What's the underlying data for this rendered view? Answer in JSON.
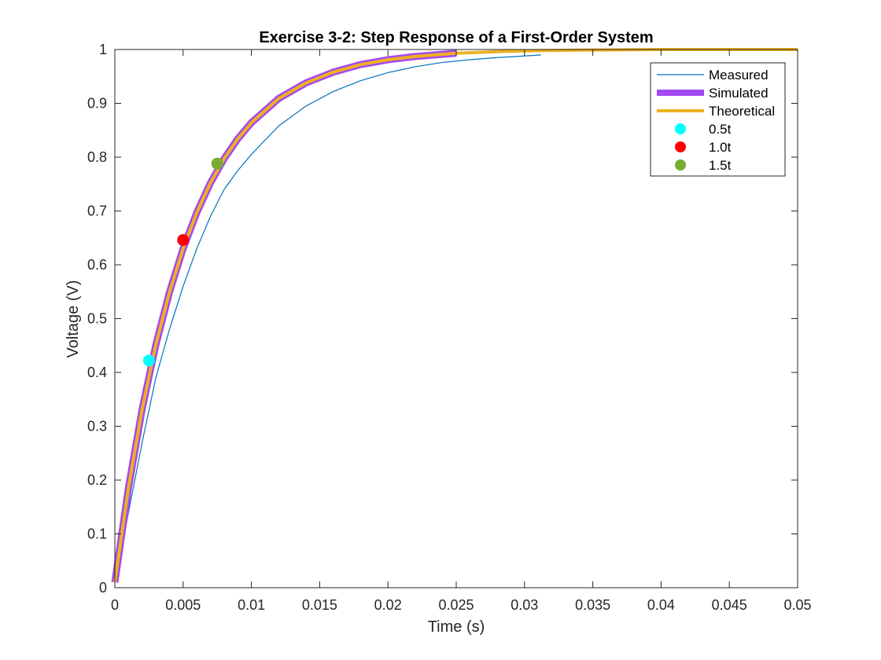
{
  "chart_data": {
    "type": "line",
    "title": "Exercise 3-2: Step Response of a First-Order System",
    "xlabel": "Time (s)",
    "ylabel": "Voltage (V)",
    "xlim": [
      0,
      0.05
    ],
    "ylim": [
      0,
      1
    ],
    "xticks": [
      0,
      0.005,
      0.01,
      0.015,
      0.02,
      0.025,
      0.03,
      0.035,
      0.04,
      0.045,
      0.05
    ],
    "xtick_labels": [
      "0",
      "0.005",
      "0.01",
      "0.015",
      "0.02",
      "0.025",
      "0.03",
      "0.035",
      "0.04",
      "0.045",
      "0.05"
    ],
    "yticks": [
      0,
      0.1,
      0.2,
      0.3,
      0.4,
      0.5,
      0.6,
      0.7,
      0.8,
      0.9,
      1
    ],
    "ytick_labels": [
      "0",
      "0.1",
      "0.2",
      "0.3",
      "0.4",
      "0.5",
      "0.6",
      "0.7",
      "0.8",
      "0.9",
      "1"
    ],
    "grid": false,
    "legend_position": "top-right",
    "series": [
      {
        "name": "Measured",
        "kind": "line",
        "color": "#0072BD",
        "x": [
          0,
          0.001,
          0.002,
          0.0025,
          0.003,
          0.004,
          0.005,
          0.006,
          0.007,
          0.008,
          0.009,
          0.01,
          0.012,
          0.014,
          0.016,
          0.018,
          0.02,
          0.022,
          0.024,
          0.026,
          0.028,
          0.03,
          0.0312
        ],
        "y": [
          0.01,
          0.14,
          0.27,
          0.33,
          0.39,
          0.48,
          0.56,
          0.63,
          0.69,
          0.74,
          0.775,
          0.805,
          0.858,
          0.895,
          0.922,
          0.942,
          0.957,
          0.968,
          0.976,
          0.981,
          0.985,
          0.988,
          0.99
        ]
      },
      {
        "name": "Simulated",
        "kind": "line",
        "color": "#A349F2",
        "x": [
          0,
          0.001,
          0.002,
          0.003,
          0.004,
          0.005,
          0.006,
          0.007,
          0.008,
          0.009,
          0.01,
          0.012,
          0.014,
          0.016,
          0.018,
          0.02,
          0.022,
          0.025
        ],
        "y": [
          0.01,
          0.186,
          0.332,
          0.451,
          0.549,
          0.63,
          0.697,
          0.752,
          0.797,
          0.834,
          0.864,
          0.909,
          0.938,
          0.958,
          0.972,
          0.981,
          0.987,
          0.993
        ]
      },
      {
        "name": "Theoretical",
        "kind": "line",
        "color": "#EDB120",
        "x": [
          0,
          0.001,
          0.002,
          0.003,
          0.004,
          0.005,
          0.006,
          0.007,
          0.008,
          0.009,
          0.01,
          0.012,
          0.014,
          0.016,
          0.018,
          0.02,
          0.022,
          0.025,
          0.028,
          0.031,
          0.035,
          0.04,
          0.045,
          0.05
        ],
        "y": [
          0.01,
          0.186,
          0.332,
          0.451,
          0.549,
          0.63,
          0.697,
          0.752,
          0.797,
          0.834,
          0.864,
          0.909,
          0.938,
          0.958,
          0.972,
          0.981,
          0.987,
          0.993,
          0.996,
          0.998,
          0.999,
          1.0,
          1.0,
          1.0
        ]
      },
      {
        "name": "0.5t",
        "kind": "point",
        "color": "#00FFFF",
        "x": [
          0.0025
        ],
        "y": [
          0.422
        ]
      },
      {
        "name": "1.0t",
        "kind": "point",
        "color": "#FF0000",
        "x": [
          0.005
        ],
        "y": [
          0.646
        ]
      },
      {
        "name": "1.5t",
        "kind": "point",
        "color": "#77AC30",
        "x": [
          0.0075
        ],
        "y": [
          0.788
        ]
      }
    ]
  }
}
